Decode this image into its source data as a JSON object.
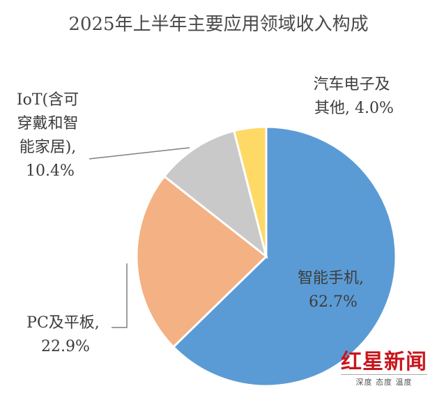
{
  "chart_data": {
    "type": "pie",
    "title": "2025年上半年主要应用领域收入构成",
    "slices": [
      {
        "label": "智能手机",
        "value": 62.7,
        "display": "62.7%",
        "color": "#5b9bd5"
      },
      {
        "label": "PC及平板",
        "value": 22.9,
        "display": "22.9%",
        "color": "#f4b183"
      },
      {
        "label": "IoT(含可穿戴和智能家居)",
        "value": 10.4,
        "display": "10.4%",
        "color": "#c9c9c9"
      },
      {
        "label": "汽车电子及其他",
        "value": 4.0,
        "display": "4.0%",
        "color": "#ffd966"
      }
    ],
    "label_lines": {
      "smartphone": [
        "智能手机,",
        "62.7%"
      ],
      "pc": [
        "PC及平板,",
        "22.9%"
      ],
      "iot": [
        "IoT(含可",
        "穿戴和智",
        "能家居),",
        "10.4%"
      ],
      "auto": [
        "汽车电子及",
        "其他, 4.0%"
      ]
    }
  },
  "watermark": {
    "main": "红星新闻",
    "sub": "深度 态度 温度"
  }
}
